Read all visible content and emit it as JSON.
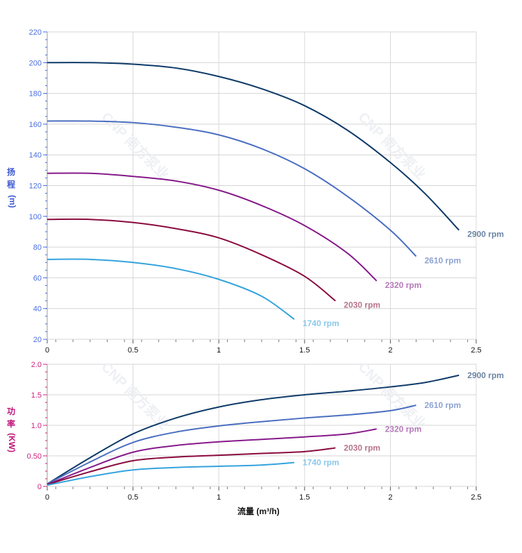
{
  "chart_data": [
    {
      "type": "line",
      "ylabel": "扬程(m)",
      "ylim": [
        20,
        220
      ],
      "yticks": [
        20,
        40,
        60,
        80,
        100,
        120,
        140,
        160,
        180,
        200,
        220
      ],
      "xlim": [
        0,
        2.5
      ],
      "xticks": [
        "0",
        "0.5",
        "1",
        "1.5",
        "2",
        "2.5"
      ],
      "grid": true,
      "series": [
        {
          "name": "2900 rpm",
          "color": "#0e3a68",
          "label_color": "#6c86a4",
          "x": [
            0,
            0.25,
            0.5,
            0.75,
            1,
            1.25,
            1.5,
            1.75,
            2,
            2.2,
            2.4
          ],
          "y": [
            200,
            200,
            199,
            196.5,
            191,
            183,
            172,
            156,
            135,
            115,
            91
          ]
        },
        {
          "name": "2610 rpm",
          "color": "#4a6ec0",
          "label_color": "#8ea3d3",
          "x": [
            0,
            0.25,
            0.5,
            0.75,
            1,
            1.25,
            1.5,
            1.75,
            2,
            2.15
          ],
          "y": [
            162,
            162,
            161,
            158,
            153,
            144,
            131,
            113,
            91,
            74
          ]
        },
        {
          "name": "2320 rpm",
          "color": "#86198a",
          "label_color": "#b47ab8",
          "x": [
            0,
            0.25,
            0.5,
            0.75,
            1,
            1.25,
            1.5,
            1.75,
            1.92
          ],
          "y": [
            128,
            128,
            126,
            123,
            117,
            107,
            94,
            76,
            58
          ]
        },
        {
          "name": "2030 rpm",
          "color": "#8a0a3e",
          "label_color": "#b6748c",
          "x": [
            0,
            0.25,
            0.5,
            0.75,
            1,
            1.25,
            1.5,
            1.68
          ],
          "y": [
            98,
            98,
            96,
            92,
            86,
            75,
            61,
            45
          ]
        },
        {
          "name": "1740 rpm",
          "color": "#34a3dd",
          "label_color": "#8ac8ea",
          "x": [
            0,
            0.25,
            0.5,
            0.75,
            1,
            1.25,
            1.44
          ],
          "y": [
            72,
            72,
            70,
            66,
            59,
            48,
            33
          ]
        }
      ]
    },
    {
      "type": "line",
      "xlabel": "流量 (m³/h)",
      "ylabel": "功率(KW)",
      "ylim": [
        0,
        2.0
      ],
      "yticks": [
        "0",
        "0.50",
        "1.0",
        "1.5",
        "2.0"
      ],
      "xlim": [
        0,
        2.5
      ],
      "xticks": [
        "0",
        "0.5",
        "1",
        "1.5",
        "2",
        "2.5"
      ],
      "grid": true,
      "series": [
        {
          "name": "2900 rpm",
          "color": "#0e3a68",
          "label_color": "#6c86a4",
          "x": [
            0,
            0.25,
            0.5,
            0.75,
            1,
            1.25,
            1.5,
            1.75,
            2,
            2.2,
            2.4
          ],
          "y": [
            0.04,
            0.47,
            0.86,
            1.12,
            1.3,
            1.42,
            1.5,
            1.56,
            1.63,
            1.7,
            1.82
          ]
        },
        {
          "name": "2610 rpm",
          "color": "#4a6ec0",
          "label_color": "#8ea3d3",
          "x": [
            0,
            0.25,
            0.5,
            0.75,
            1,
            1.25,
            1.5,
            1.75,
            2,
            2.15
          ],
          "y": [
            0.04,
            0.4,
            0.72,
            0.89,
            0.99,
            1.06,
            1.12,
            1.17,
            1.24,
            1.33
          ]
        },
        {
          "name": "2320 rpm",
          "color": "#86198a",
          "label_color": "#b47ab8",
          "x": [
            0,
            0.25,
            0.5,
            0.75,
            1,
            1.25,
            1.5,
            1.75,
            1.92
          ],
          "y": [
            0.03,
            0.31,
            0.56,
            0.67,
            0.73,
            0.77,
            0.81,
            0.86,
            0.94
          ]
        },
        {
          "name": "2030 rpm",
          "color": "#8a0a3e",
          "label_color": "#b6748c",
          "x": [
            0,
            0.25,
            0.5,
            0.75,
            1,
            1.25,
            1.5,
            1.68
          ],
          "y": [
            0.03,
            0.24,
            0.42,
            0.48,
            0.51,
            0.54,
            0.57,
            0.63
          ]
        },
        {
          "name": "1740 rpm",
          "color": "#34a3dd",
          "label_color": "#8ac8ea",
          "x": [
            0,
            0.25,
            0.5,
            0.75,
            1,
            1.25,
            1.44
          ],
          "y": [
            0.02,
            0.16,
            0.27,
            0.31,
            0.33,
            0.35,
            0.39
          ]
        }
      ]
    }
  ],
  "labels": {
    "head_y": [
      "扬",
      "程",
      "(m)"
    ],
    "power_y": [
      "功",
      "率",
      "(KW)"
    ],
    "x_axis": "流量 (m³/h)"
  },
  "watermark": "CNP 南方泵业"
}
